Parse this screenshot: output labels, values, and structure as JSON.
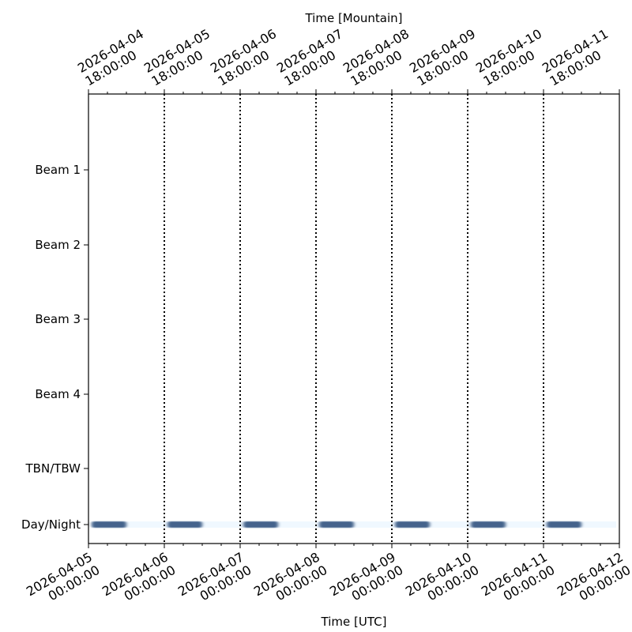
{
  "chart_data": {
    "type": "timeline",
    "xlabel_bottom": "Time [UTC]",
    "xlabel_top": "Time [Mountain]",
    "xlim": [
      "2026-04-05 00:00:00",
      "2026-04-12 00:00:00"
    ],
    "bottom_ticks": [
      {
        "date": "2026-04-05",
        "time": "00:00:00"
      },
      {
        "date": "2026-04-06",
        "time": "00:00:00"
      },
      {
        "date": "2026-04-07",
        "time": "00:00:00"
      },
      {
        "date": "2026-04-08",
        "time": "00:00:00"
      },
      {
        "date": "2026-04-09",
        "time": "00:00:00"
      },
      {
        "date": "2026-04-10",
        "time": "00:00:00"
      },
      {
        "date": "2026-04-11",
        "time": "00:00:00"
      },
      {
        "date": "2026-04-12",
        "time": "00:00:00"
      }
    ],
    "top_ticks": [
      {
        "date": "2026-04-04",
        "time": "18:00:00"
      },
      {
        "date": "2026-04-05",
        "time": "18:00:00"
      },
      {
        "date": "2026-04-06",
        "time": "18:00:00"
      },
      {
        "date": "2026-04-07",
        "time": "18:00:00"
      },
      {
        "date": "2026-04-08",
        "time": "18:00:00"
      },
      {
        "date": "2026-04-09",
        "time": "18:00:00"
      },
      {
        "date": "2026-04-10",
        "time": "18:00:00"
      },
      {
        "date": "2026-04-11",
        "time": "18:00:00"
      }
    ],
    "categories": [
      "Beam 1",
      "Beam 2",
      "Beam 3",
      "Beam 4",
      "TBN/TBW",
      "Day/Night"
    ],
    "day_boundaries": [
      "2026-04-06",
      "2026-04-07",
      "2026-04-08",
      "2026-04-09",
      "2026-04-10",
      "2026-04-11"
    ],
    "dark_periods": [
      {
        "start": "2026-04-05 01:00",
        "end": "2026-04-05 12:00"
      },
      {
        "start": "2026-04-06 01:00",
        "end": "2026-04-06 12:00"
      },
      {
        "start": "2026-04-07 01:00",
        "end": "2026-04-07 12:00"
      },
      {
        "start": "2026-04-08 01:00",
        "end": "2026-04-08 12:00"
      },
      {
        "start": "2026-04-09 01:00",
        "end": "2026-04-09 12:00"
      },
      {
        "start": "2026-04-10 01:00",
        "end": "2026-04-10 12:00"
      },
      {
        "start": "2026-04-11 01:00",
        "end": "2026-04-11 12:00"
      }
    ],
    "colors": {
      "night": "#44648c",
      "day": "#f0f8ff"
    }
  }
}
